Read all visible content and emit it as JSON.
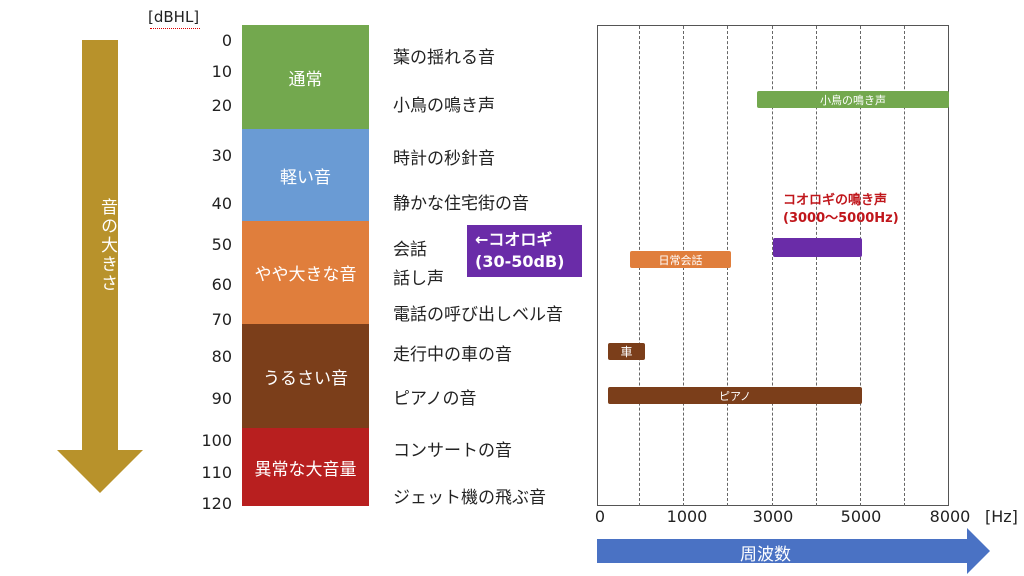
{
  "db_unit": "[dBHL]",
  "db_ticks": [
    "0",
    "10",
    "20",
    "30",
    "40",
    "50",
    "60",
    "70",
    "80",
    "90",
    "100",
    "110",
    "120"
  ],
  "loudness_arrow_label": "音の大きさ",
  "bands": [
    {
      "label": "通常",
      "color": "#73a84e"
    },
    {
      "label": "軽い音",
      "color": "#6a9bd4"
    },
    {
      "label": "やや大きな音",
      "color": "#e07e3c"
    },
    {
      "label": "うるさい音",
      "color": "#7b3e1a"
    },
    {
      "label": "異常な大音量",
      "color": "#b81f1f"
    }
  ],
  "sounds": [
    "葉の揺れる音",
    "小鳥の鳴き声",
    "時計の秒針音",
    "静かな住宅街の音",
    "会話",
    "話し声",
    "電話の呼び出しベル音",
    "走行中の車の音",
    "ピアノの音",
    "コンサートの音",
    "ジェット機の飛ぶ音"
  ],
  "cricket_callout": {
    "line1": "←コオロギ",
    "line2": "(30-50dB)"
  },
  "chart_data": {
    "type": "range-bar",
    "x_ticks": [
      "0",
      "1000",
      "3000",
      "5000",
      "8000"
    ],
    "x_unit": "[Hz]",
    "x_axis_label": "周波数",
    "bars": [
      {
        "label": "小鳥の鳴き声",
        "color": "#73a84e"
      },
      {
        "label": "日常会話",
        "color": "#e07e3c"
      },
      {
        "label": "",
        "color": "#6a2ca8"
      },
      {
        "label": "車",
        "color": "#7b3e1a"
      },
      {
        "label": "ピアノ",
        "color": "#7b3e1a"
      }
    ],
    "annotation": {
      "line1": "コオロギの鳴き声",
      "line2": "(3000〜5000Hz)"
    }
  },
  "colors": {
    "loudness_arrow": "#b8922b",
    "frequency_arrow": "#4a72c4"
  }
}
